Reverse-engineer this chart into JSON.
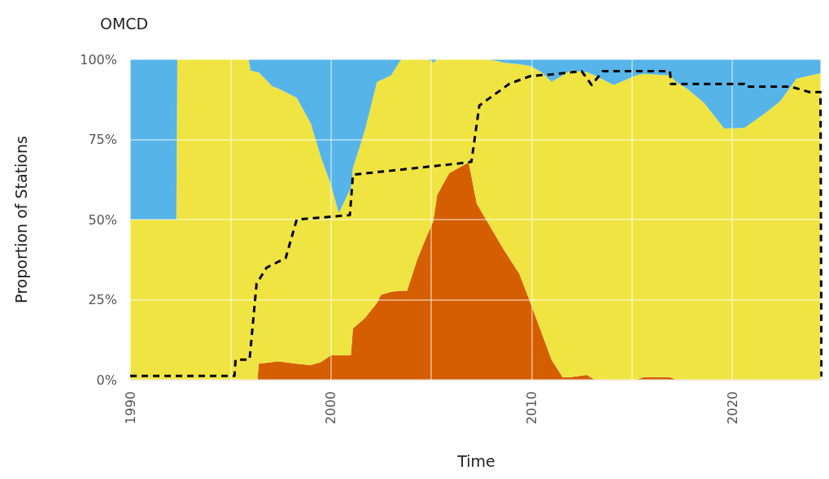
{
  "chart_data": {
    "type": "area",
    "title": "OMCD",
    "xlabel": "Time",
    "ylabel": "Proportion of Stations",
    "stacked": true,
    "grid": true,
    "xlim": [
      1990,
      2024.5
    ],
    "xticks": [
      1990,
      {
        "value": 1995,
        "label": null
      },
      2000,
      {
        "value": 2005,
        "label": null
      },
      2010,
      {
        "value": 2015,
        "label": null
      },
      2020
    ],
    "ylim": [
      0,
      100
    ],
    "yticks": [
      {
        "value": 0,
        "label": "0%"
      },
      {
        "value": 25,
        "label": "25%"
      },
      {
        "value": 50,
        "label": "50%"
      },
      {
        "value": 75,
        "label": "75%"
      },
      {
        "value": 100,
        "label": "100%"
      }
    ],
    "x": [
      1990,
      1992.3,
      1992.35,
      1995.9,
      1996.0,
      1996.35,
      1996.4,
      1997.1,
      1997.35,
      1998.3,
      1999,
      1999.5,
      2000,
      2000.4,
      2001,
      2001.1,
      2001.7,
      2002.3,
      2002.5,
      2003,
      2003.5,
      2003.8,
      2004.3,
      2004.85,
      2005.1,
      2005.3,
      2005.9,
      2006.87,
      2007.27,
      2007.8,
      2008.3,
      2008.6,
      2009.4,
      2009.95,
      2010.5,
      2011,
      2011.55,
      2011.95,
      2012.75,
      2013.15,
      2014.1,
      2015.2,
      2015.6,
      2016.9,
      2017.2,
      2017.8,
      2018.6,
      2019.6,
      2020.6,
      2021.6,
      2022.4,
      2023.2,
      2024.4
    ],
    "series": [
      {
        "color": "#d55e00",
        "values": [
          0,
          0,
          0,
          0,
          0,
          0,
          5,
          5.5,
          5.8,
          5,
          4.6,
          5.5,
          7.6,
          7.6,
          7.6,
          16,
          19.3,
          24,
          26.5,
          27.5,
          27.8,
          27.8,
          37.5,
          45.9,
          49.4,
          57.7,
          64.5,
          67.8,
          55,
          49.3,
          44,
          40.8,
          33,
          24,
          14.7,
          6.2,
          0.8,
          0.8,
          1.5,
          0,
          0,
          0,
          0.8,
          0.8,
          0,
          0,
          0,
          0,
          0,
          0,
          0,
          0,
          0
        ]
      },
      {
        "color": "#f0e442",
        "values": [
          50,
          50,
          100,
          100,
          96.5,
          96,
          91,
          86,
          85.2,
          83,
          75.4,
          64.1,
          53.4,
          44.4,
          52.4,
          50,
          58.7,
          69,
          67,
          67.5,
          72.2,
          72.2,
          62.5,
          54.1,
          49.6,
          42.3,
          35.5,
          32.2,
          45,
          50.7,
          55.5,
          58.2,
          65.5,
          74,
          81.3,
          86.8,
          94.2,
          95.7,
          94.5,
          95,
          92,
          95,
          94.7,
          94.2,
          93,
          90.6,
          86.4,
          78.4,
          78.6,
          83,
          87,
          94,
          95.7
        ]
      },
      {
        "color": "#56b4e9",
        "values": [
          50,
          50,
          0,
          0,
          3.5,
          4,
          4,
          8.5,
          9,
          12,
          20,
          30.4,
          39,
          48,
          40,
          34,
          22,
          7,
          6.5,
          5,
          0,
          0,
          0,
          0,
          1,
          0,
          0,
          0,
          0,
          0,
          0.5,
          1,
          1.5,
          2,
          4,
          7,
          5,
          3.5,
          4,
          5,
          8,
          5,
          4.5,
          5,
          7,
          9.4,
          13.6,
          21.6,
          21.4,
          17,
          13,
          6,
          4.3
        ]
      },
      {
        "type": "line",
        "color": "#000000",
        "line_style": "dashed",
        "marker": "none",
        "x": [
          1990,
          1995.2,
          1995.25,
          1995.95,
          1996.3,
          1996.8,
          1997.75,
          1998.3,
          2000.95,
          2001.1,
          2006.2,
          2007.0,
          2007.05,
          2007.4,
          2008.9,
          2009.95,
          2011,
          2012.5,
          2013.0,
          2013.55,
          2016.9,
          2016.95,
          2020.6,
          2020.65,
          2022.9,
          2023.85,
          2024.4,
          2024.45
        ],
        "values": [
          1.2,
          1.2,
          6.3,
          6.3,
          30,
          35,
          38,
          50,
          51.4,
          64,
          67.4,
          68,
          70,
          85.6,
          92.4,
          94.8,
          95.3,
          96.3,
          92,
          96.3,
          96.3,
          92.3,
          92.3,
          91.5,
          91.5,
          89.8,
          89.8,
          1
        ]
      }
    ]
  }
}
